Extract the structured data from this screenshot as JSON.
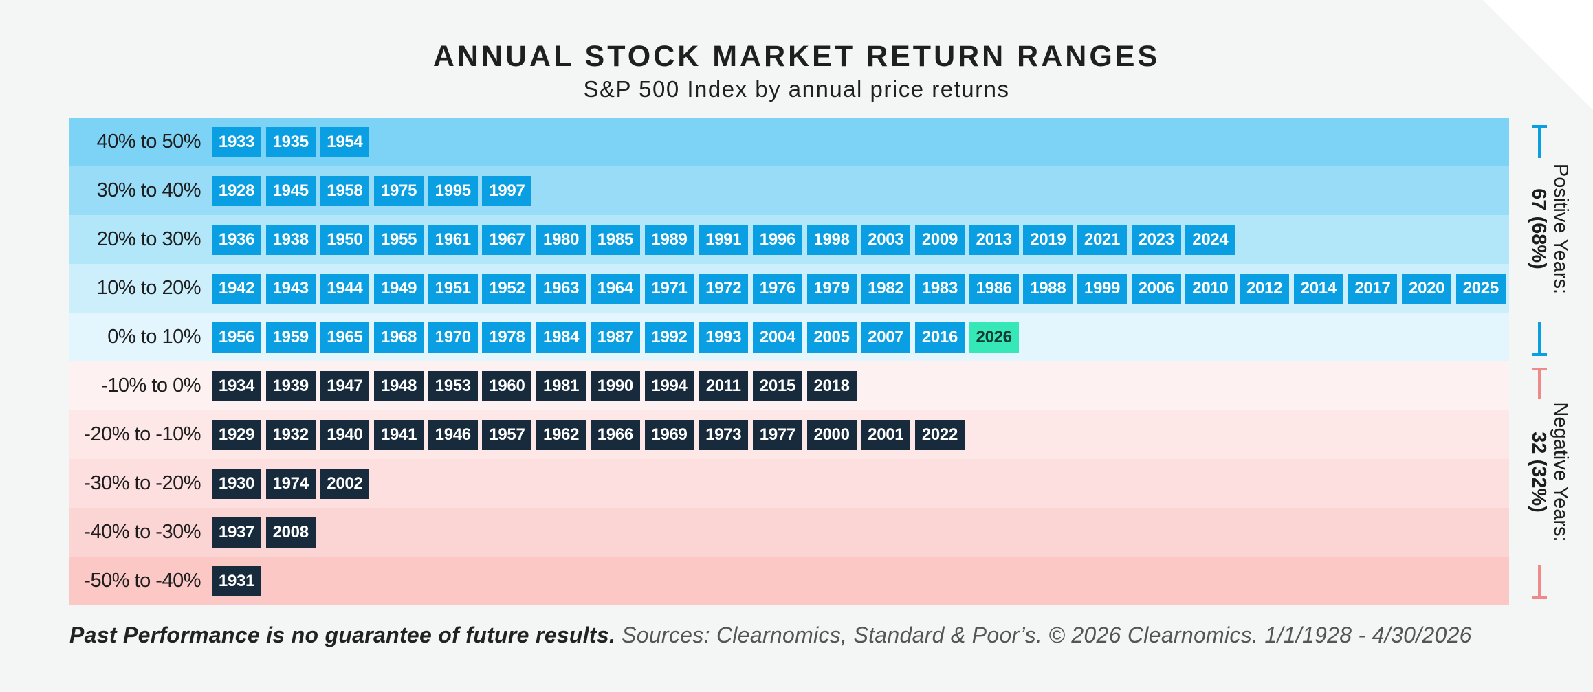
{
  "header": {
    "title": "ANNUAL STOCK MARKET RETURN RANGES",
    "subtitle": "S&P 500 Index by annual price returns"
  },
  "colors": {
    "positive_chip": "#0a9fe3",
    "negative_chip": "#172b3c",
    "highlight_chip": "#36e8b8",
    "positive_bracket": "#0a9fe3",
    "negative_bracket": "#f08a8a"
  },
  "chart_data": {
    "type": "table",
    "rows": [
      {
        "label": "40% to 50%",
        "sign": "positive",
        "band_color": "#7dd3f6",
        "years": [
          "1933",
          "1935",
          "1954"
        ]
      },
      {
        "label": "30% to 40%",
        "sign": "positive",
        "band_color": "#98dcf7",
        "years": [
          "1928",
          "1945",
          "1958",
          "1975",
          "1995",
          "1997"
        ]
      },
      {
        "label": "20% to 30%",
        "sign": "positive",
        "band_color": "#b2e6f9",
        "years": [
          "1936",
          "1938",
          "1950",
          "1955",
          "1961",
          "1967",
          "1980",
          "1985",
          "1989",
          "1991",
          "1996",
          "1998",
          "2003",
          "2009",
          "2013",
          "2019",
          "2021",
          "2023",
          "2024"
        ]
      },
      {
        "label": "10% to 20%",
        "sign": "positive",
        "band_color": "#cdeffb",
        "years": [
          "1942",
          "1943",
          "1944",
          "1949",
          "1951",
          "1952",
          "1963",
          "1964",
          "1971",
          "1972",
          "1976",
          "1979",
          "1982",
          "1983",
          "1986",
          "1988",
          "1999",
          "2006",
          "2010",
          "2012",
          "2014",
          "2017",
          "2020",
          "2025"
        ]
      },
      {
        "label": "0% to 10%",
        "sign": "positive",
        "band_color": "#e3f5fd",
        "years": [
          "1956",
          "1959",
          "1965",
          "1968",
          "1970",
          "1978",
          "1984",
          "1987",
          "1992",
          "1993",
          "2004",
          "2005",
          "2007",
          "2016",
          "2026"
        ]
      },
      {
        "label": "-10% to 0%",
        "sign": "negative",
        "band_color": "#fdf1f1",
        "years": [
          "1934",
          "1939",
          "1947",
          "1948",
          "1953",
          "1960",
          "1981",
          "1990",
          "1994",
          "2011",
          "2015",
          "2018"
        ]
      },
      {
        "label": "-20% to -10%",
        "sign": "negative",
        "band_color": "#fde8e7",
        "years": [
          "1929",
          "1932",
          "1940",
          "1941",
          "1946",
          "1957",
          "1962",
          "1966",
          "1969",
          "1973",
          "1977",
          "2000",
          "2001",
          "2022"
        ]
      },
      {
        "label": "-30% to -20%",
        "sign": "negative",
        "band_color": "#fcdfde",
        "years": [
          "1930",
          "1974",
          "2002"
        ]
      },
      {
        "label": "-40% to -30%",
        "sign": "negative",
        "band_color": "#fbd5d4",
        "years": [
          "1937",
          "2008"
        ]
      },
      {
        "label": "-50% to -40%",
        "sign": "negative",
        "band_color": "#fbc8c6",
        "years": [
          "1931"
        ]
      }
    ],
    "highlighted_year": "2026",
    "summary": {
      "positive": {
        "label": "Positive Years:",
        "value": "67 (68%)"
      },
      "negative": {
        "label": "Negative Years:",
        "value": "32 (32%)"
      }
    }
  },
  "footer": {
    "disclaimer": "Past Performance is no guarantee of future results.",
    "sources": "Sources: Clearnomics, Standard & Poor’s. © 2026 Clearnomics. 1/1/1928 - 4/30/2026"
  }
}
